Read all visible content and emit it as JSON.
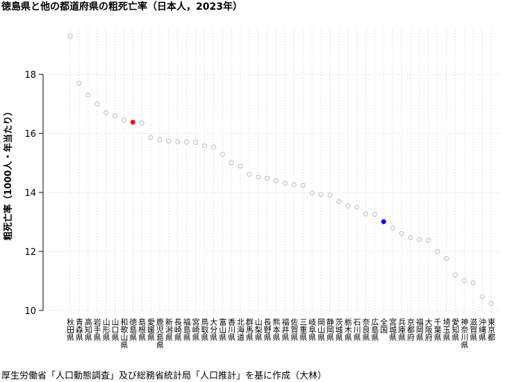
{
  "chart_data": {
    "type": "dot",
    "title": "徳島県と他の都道府県の粗死亡率（日本人，2023年）",
    "y_label": "粗死亡率（1000人・年当たり）",
    "caption": "厚生労働省「人口動態調査」及び総務省統計局「人口推計」を基に作成（大林）",
    "categories": [
      "秋田県",
      "青森県",
      "高知県",
      "岩手県",
      "山形県",
      "山口県",
      "和歌山県",
      "徳島県",
      "島根県",
      "愛媛県",
      "鹿児島県",
      "新潟県",
      "長崎県",
      "福島県",
      "宮崎県",
      "鳥取県",
      "大分県",
      "富山県",
      "香川県",
      "北海道",
      "群馬県",
      "山梨県",
      "長野県",
      "熊本県",
      "福井県",
      "佐賀県",
      "三重県",
      "岐阜県",
      "岡山県",
      "静岡県",
      "茨城県",
      "栃木県",
      "石川県",
      "奈良県",
      "広島県",
      "全国",
      "宮城県",
      "兵庫県",
      "京都府",
      "福岡県",
      "大阪府",
      "千葉県",
      "埼玉県",
      "愛知県",
      "神奈川県",
      "滋賀県",
      "沖縄県",
      "東京都"
    ],
    "values": [
      19.3,
      17.7,
      17.3,
      17.0,
      16.7,
      16.6,
      16.45,
      16.38,
      16.35,
      15.86,
      15.79,
      15.74,
      15.72,
      15.71,
      15.7,
      15.58,
      15.53,
      15.29,
      15.01,
      14.89,
      14.61,
      14.52,
      14.47,
      14.4,
      14.31,
      14.26,
      14.24,
      13.98,
      13.93,
      13.91,
      13.69,
      13.55,
      13.5,
      13.27,
      13.26,
      13.01,
      12.8,
      12.61,
      12.47,
      12.4,
      12.38,
      12.0,
      11.76,
      11.2,
      11.01,
      10.94,
      10.47,
      10.24
    ],
    "marker_color": "#bbbbbb",
    "colors": [
      "#bbbbbb",
      "#bbbbbb",
      "#bbbbbb",
      "#bbbbbb",
      "#bbbbbb",
      "#bbbbbb",
      "#bbbbbb",
      "#ff0000",
      "#bbbbbb",
      "#bbbbbb",
      "#bbbbbb",
      "#bbbbbb",
      "#bbbbbb",
      "#bbbbbb",
      "#bbbbbb",
      "#bbbbbb",
      "#bbbbbb",
      "#bbbbbb",
      "#bbbbbb",
      "#bbbbbb",
      "#bbbbbb",
      "#bbbbbb",
      "#bbbbbb",
      "#bbbbbb",
      "#bbbbbb",
      "#bbbbbb",
      "#bbbbbb",
      "#bbbbbb",
      "#bbbbbb",
      "#bbbbbb",
      "#bbbbbb",
      "#bbbbbb",
      "#bbbbbb",
      "#bbbbbb",
      "#bbbbbb",
      "#0000ff",
      "#bbbbbb",
      "#bbbbbb",
      "#bbbbbb",
      "#bbbbbb",
      "#bbbbbb",
      "#bbbbbb",
      "#bbbbbb",
      "#bbbbbb",
      "#bbbbbb",
      "#bbbbbb",
      "#bbbbbb",
      "#bbbbbb"
    ],
    "ylim": [
      9.93,
      19.58
    ],
    "yticks": [
      10,
      12,
      14,
      16,
      18
    ],
    "grid": true
  }
}
